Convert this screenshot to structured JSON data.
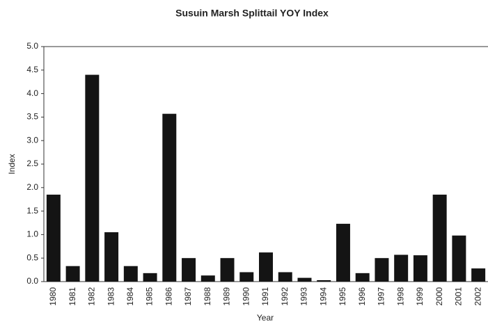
{
  "chart_data": {
    "type": "bar",
    "title": "Susuin Marsh Splittail YOY Index",
    "x_label": "Year",
    "y_label": "Index",
    "categories": [
      "1980",
      "1981",
      "1982",
      "1983",
      "1984",
      "1985",
      "1986",
      "1987",
      "1988",
      "1989",
      "1990",
      "1991",
      "1992",
      "1993",
      "1994",
      "1995",
      "1996",
      "1997",
      "1998",
      "1999",
      "2000",
      "2001",
      "2002"
    ],
    "values": [
      1.85,
      0.33,
      4.4,
      1.05,
      0.33,
      0.18,
      3.57,
      0.5,
      0.13,
      0.5,
      0.2,
      0.62,
      0.2,
      0.08,
      0.03,
      1.23,
      0.18,
      0.5,
      0.57,
      0.56,
      1.85,
      0.98,
      0.28
    ],
    "color": "#141414",
    "ylim": [
      0,
      5
    ],
    "yticks": [
      {
        "value": 0,
        "label": "0.0"
      },
      0.5,
      {
        "value": 1,
        "label": "1.0"
      },
      1.5,
      {
        "value": 2,
        "label": "2.0"
      },
      2.5,
      {
        "value": 3,
        "label": "3.0"
      },
      3.5,
      {
        "value": 4,
        "label": "4.0"
      },
      4.5,
      {
        "value": 5,
        "label": "5.0"
      }
    ],
    "grid": false
  }
}
